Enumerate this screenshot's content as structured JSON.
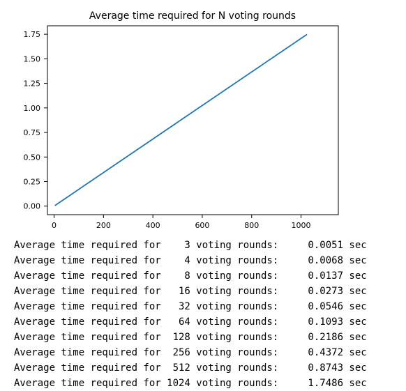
{
  "chart_data": {
    "type": "line",
    "title": "Average time required for N voting rounds",
    "xlabel": "",
    "ylabel": "",
    "xlim": [
      -27,
      1151
    ],
    "ylim": [
      -0.087,
      1.836
    ],
    "x_ticks": [
      0,
      200,
      400,
      600,
      800,
      1000
    ],
    "y_ticks": [
      0.0,
      0.25,
      0.5,
      0.75,
      1.0,
      1.25,
      1.5,
      1.75
    ],
    "x_tick_labels": [
      "0",
      "200",
      "400",
      "600",
      "800",
      "1000"
    ],
    "y_tick_labels": [
      "0.00",
      "0.25",
      "0.50",
      "0.75",
      "1.00",
      "1.25",
      "1.50",
      "1.75"
    ],
    "grid": false,
    "line_color": "#1f77b4",
    "series": [
      {
        "x": [
          3,
          4,
          8,
          16,
          32,
          64,
          128,
          256,
          512,
          1024
        ],
        "y": [
          0.0051,
          0.0068,
          0.0137,
          0.0273,
          0.0546,
          0.1093,
          0.2186,
          0.4372,
          0.8743,
          1.7486
        ]
      }
    ]
  },
  "output": {
    "lines": [
      "Average time required for    3 voting rounds:     0.0051 sec",
      "Average time required for    4 voting rounds:     0.0068 sec",
      "Average time required for    8 voting rounds:     0.0137 sec",
      "Average time required for   16 voting rounds:     0.0273 sec",
      "Average time required for   32 voting rounds:     0.0546 sec",
      "Average time required for   64 voting rounds:     0.1093 sec",
      "Average time required for  128 voting rounds:     0.2186 sec",
      "Average time required for  256 voting rounds:     0.4372 sec",
      "Average time required for  512 voting rounds:     0.8743 sec",
      "Average time required for 1024 voting rounds:     1.7486 sec"
    ]
  }
}
